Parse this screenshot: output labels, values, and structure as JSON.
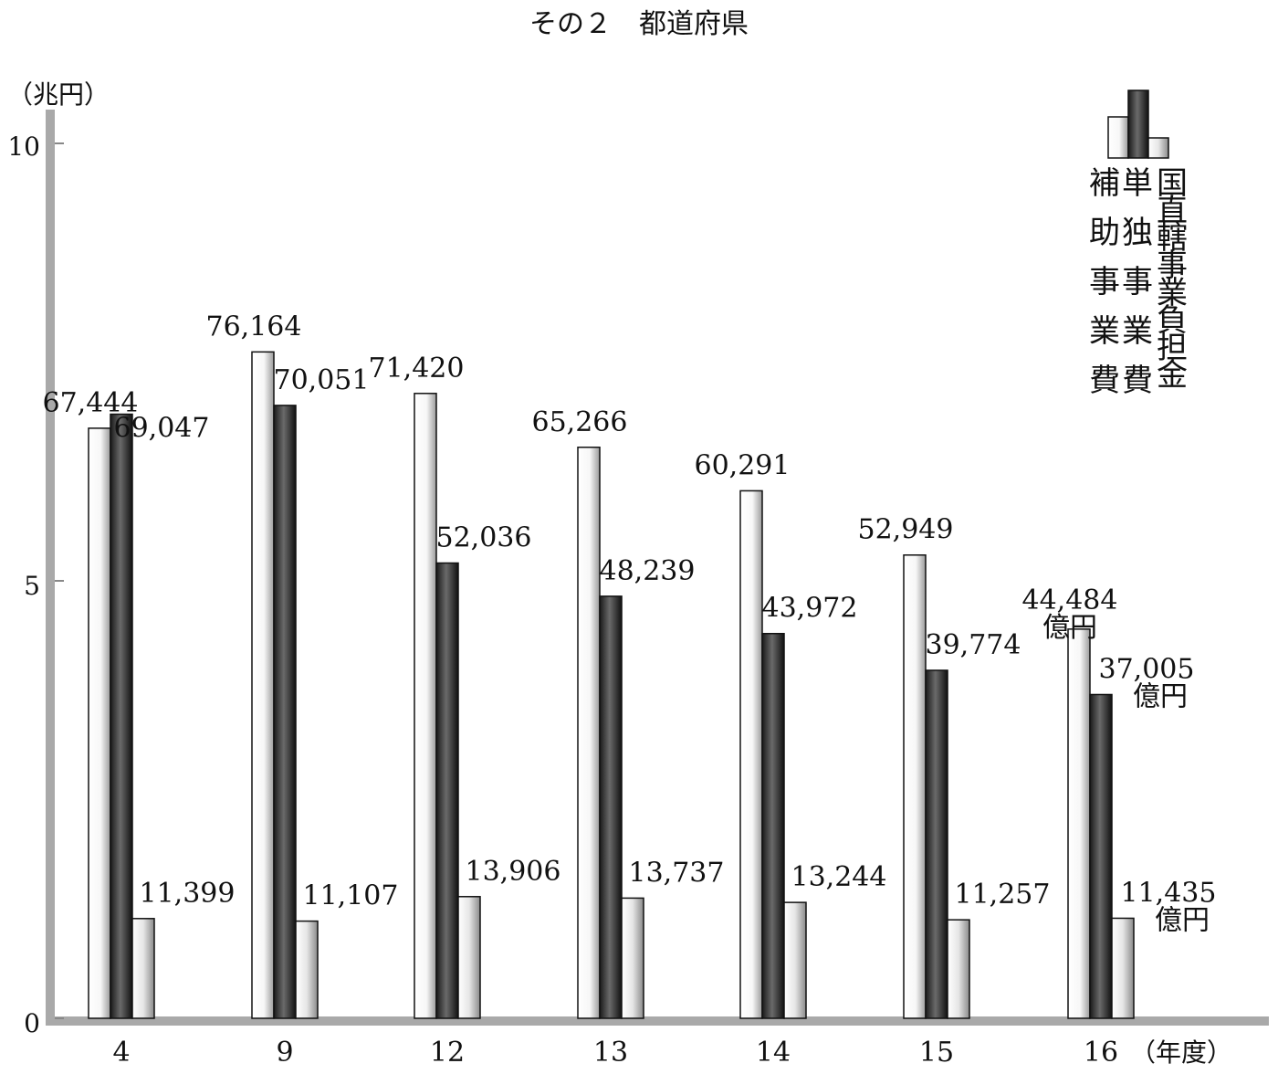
{
  "chart_data": {
    "type": "bar",
    "title": "その２　都道府県",
    "ylabel": "（兆円）",
    "xlabel": "（年度）",
    "ylim": [
      0,
      10
    ],
    "yticks": [
      "0",
      "5",
      "10"
    ],
    "categories": [
      "4",
      "9",
      "12",
      "13",
      "14",
      "15",
      "16"
    ],
    "series": [
      {
        "name": "補助事業費",
        "color": "#f2f2f2",
        "values": [
          67444,
          76164,
          71420,
          65266,
          60291,
          52949,
          44484
        ],
        "labels": [
          "67,444",
          "76,164",
          "71,420",
          "65,266",
          "60,291",
          "52,949",
          "44,484"
        ]
      },
      {
        "name": "単独事業費",
        "color": "#333333",
        "values": [
          69047,
          70051,
          52036,
          48239,
          43972,
          39774,
          37005
        ],
        "labels": [
          "69,047",
          "70,051",
          "52,036",
          "48,239",
          "43,972",
          "39,774",
          "37,005"
        ]
      },
      {
        "name": "国直轄事業負担金",
        "color": "#d0d0d0",
        "values": [
          11399,
          11107,
          13906,
          13737,
          13244,
          11257,
          11435
        ],
        "labels": [
          "11,399",
          "11,107",
          "13,906",
          "13,737",
          "13,244",
          "11,257",
          "11,435"
        ]
      }
    ],
    "unit_suffix": "億円",
    "grid": false,
    "legend_position": "top-right"
  }
}
